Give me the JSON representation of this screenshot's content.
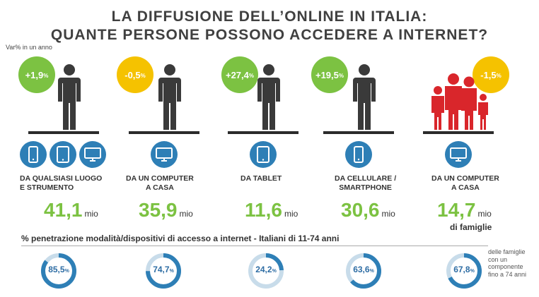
{
  "title_line1": "LA DIFFUSIONE DELL’ONLINE IN ITALIA:",
  "title_line2": "QUANTE PERSONE POSSONO ACCEDERE A INTERNET?",
  "var_label": "Var% in un anno",
  "columns": [
    {
      "badge": "+1,9",
      "badge_color": "#7cc242",
      "label1": "DA QUALSIASI LUOGO",
      "label2": "E STRUMENTO",
      "value": "41,1",
      "unit": "mio",
      "sub": "",
      "devices": [
        "smartphone-icon",
        "tablet-icon",
        "monitor-icon"
      ]
    },
    {
      "badge": "-0,5",
      "badge_color": "#f5c200",
      "label1": "DA UN COMPUTER",
      "label2": "A CASA",
      "value": "35,9",
      "unit": "mio",
      "sub": "",
      "devices": [
        "monitor-icon"
      ]
    },
    {
      "badge": "+27,4",
      "badge_color": "#7cc242",
      "label1": "DA TABLET",
      "label2": "",
      "value": "11,6",
      "unit": "mio",
      "sub": "",
      "devices": [
        "tablet-icon"
      ]
    },
    {
      "badge": "+19,5",
      "badge_color": "#7cc242",
      "label1": "DA CELLULARE /",
      "label2": "SMARTPHONE",
      "value": "30,6",
      "unit": "mio",
      "sub": "",
      "devices": [
        "smartphone-icon"
      ]
    },
    {
      "badge": "-1,5",
      "badge_color": "#f5c200",
      "label1": "DA UN COMPUTER",
      "label2": "A CASA",
      "value": "14,7",
      "unit": "mio",
      "sub": "di famiglie",
      "devices": [
        "monitor-icon"
      ]
    }
  ],
  "percent_sign": "%",
  "penetration_title": "% penetrazione modalità/dispositivi  di accesso a internet - Italiani  di 11-74 anni",
  "penetration": [
    {
      "value": "85,5",
      "fraction": 0.855
    },
    {
      "value": "74,7",
      "fraction": 0.747
    },
    {
      "value": "24,2",
      "fraction": 0.242
    },
    {
      "value": "63,6",
      "fraction": 0.636
    },
    {
      "value": "67,8",
      "fraction": 0.678
    }
  ],
  "note_lines": [
    "delle famiglie",
    "con un",
    "componente",
    "fino a 74 anni"
  ],
  "colors": {
    "green": "#7cc242",
    "yellow": "#f5c200",
    "blue": "#2e7fb6",
    "family_red": "#d9262b",
    "person": "#3a3a3a"
  }
}
